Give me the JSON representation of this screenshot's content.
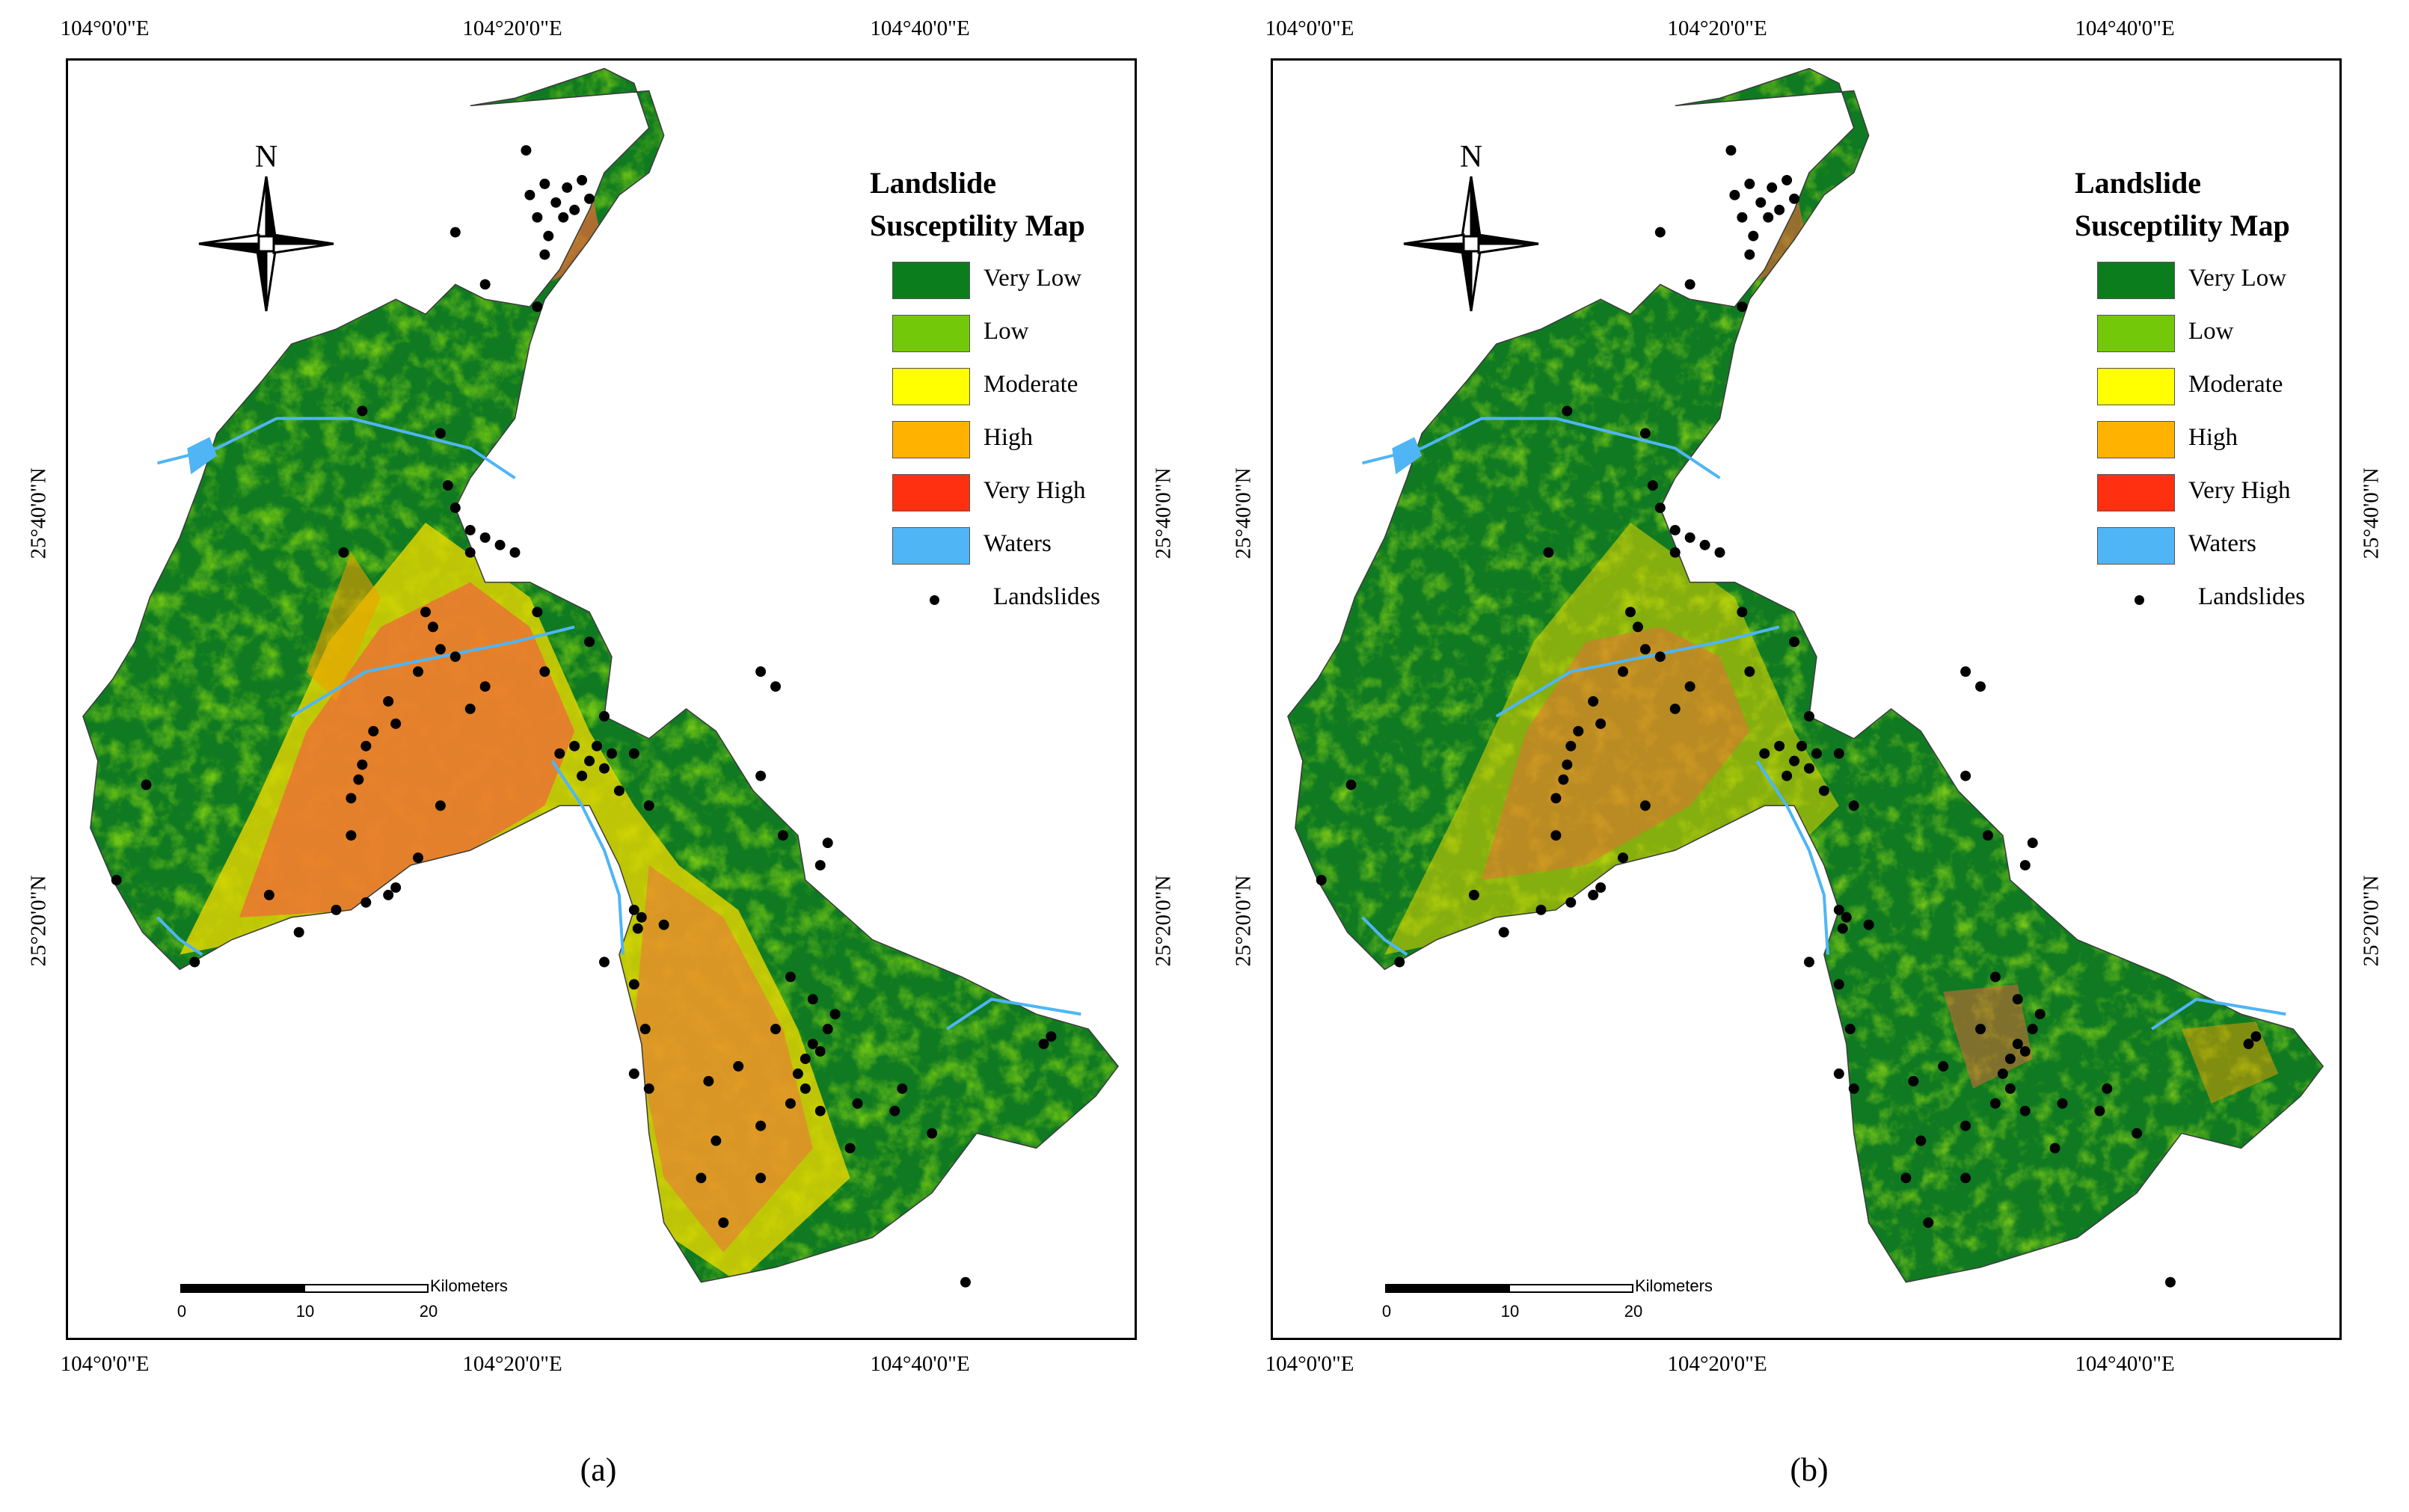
{
  "panels": [
    {
      "caption": "(a)",
      "legend": {
        "title_line1": "Landslide",
        "title_line2": "Susceptility Map",
        "classes": [
          {
            "label": "Very Low",
            "color": "#0b7d1d"
          },
          {
            "label": "Low",
            "color": "#74c80a"
          },
          {
            "label": "Moderate",
            "color": "#ffff00"
          },
          {
            "label": "High",
            "color": "#ffb300"
          },
          {
            "label": "Very High",
            "color": "#ff3010"
          },
          {
            "label": "Waters",
            "color": "#4fb5f5"
          }
        ],
        "point_label": "Landslides"
      }
    },
    {
      "caption": "(b)",
      "legend": {
        "title_line1": "Landslide",
        "title_line2": "Susceptility Map",
        "classes": [
          {
            "label": "Very Low",
            "color": "#0b7d1d"
          },
          {
            "label": "Low",
            "color": "#74c80a"
          },
          {
            "label": "Moderate",
            "color": "#ffff00"
          },
          {
            "label": "High",
            "color": "#ffb300"
          },
          {
            "label": "Very High",
            "color": "#ff3010"
          },
          {
            "label": "Waters",
            "color": "#4fb5f5"
          }
        ],
        "point_label": "Landslides"
      }
    }
  ],
  "graticule": {
    "lon_top": [
      "104°0'0\"E",
      "104°20'0\"E",
      "104°40'0\"E"
    ],
    "lon_bottom": [
      "104°0'0\"E",
      "104°20'0\"E",
      "104°40'0\"E"
    ],
    "lat_labels": [
      "25°40'0\"N",
      "25°20'0\"N"
    ]
  },
  "north_arrow": {
    "label": "N",
    "icon": "compass-rose-icon"
  },
  "scale_bar": {
    "unit": "Kilometers",
    "ticks": [
      "0",
      "10",
      "20"
    ]
  }
}
